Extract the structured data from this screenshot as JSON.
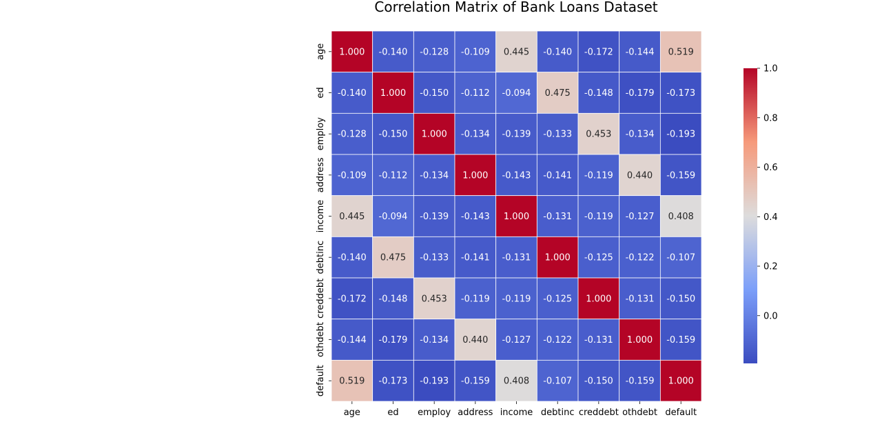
{
  "chart_data": {
    "type": "heatmap",
    "title": "Correlation Matrix of Bank Loans Dataset",
    "rows": [
      "age",
      "ed",
      "employ",
      "address",
      "income",
      "debtinc",
      "creddebt",
      "othdebt",
      "default"
    ],
    "columns": [
      "age",
      "ed",
      "employ",
      "address",
      "income",
      "debtinc",
      "creddebt",
      "othdebt",
      "default"
    ],
    "values": [
      [
        1.0,
        -0.14,
        -0.128,
        -0.109,
        0.445,
        -0.14,
        -0.172,
        -0.144,
        0.519
      ],
      [
        -0.14,
        1.0,
        -0.15,
        -0.112,
        -0.094,
        0.475,
        -0.148,
        -0.179,
        -0.173
      ],
      [
        -0.128,
        -0.15,
        1.0,
        -0.134,
        -0.139,
        -0.133,
        0.453,
        -0.134,
        -0.193
      ],
      [
        -0.109,
        -0.112,
        -0.134,
        1.0,
        -0.143,
        -0.141,
        -0.119,
        0.44,
        -0.159
      ],
      [
        0.445,
        -0.094,
        -0.139,
        -0.143,
        1.0,
        -0.131,
        -0.119,
        -0.127,
        0.408
      ],
      [
        -0.14,
        0.475,
        -0.133,
        -0.141,
        -0.131,
        1.0,
        -0.125,
        -0.122,
        -0.107
      ],
      [
        -0.172,
        -0.148,
        0.453,
        -0.119,
        -0.119,
        -0.125,
        1.0,
        -0.131,
        -0.15
      ],
      [
        -0.144,
        -0.179,
        -0.134,
        0.44,
        -0.127,
        -0.122,
        -0.131,
        1.0,
        -0.159
      ],
      [
        0.519,
        -0.173,
        -0.193,
        -0.159,
        0.408,
        -0.107,
        -0.15,
        -0.159,
        1.0
      ]
    ],
    "value_format": "3 decimals",
    "colormap": "coolwarm",
    "vmin": -0.193,
    "vmax": 1.0,
    "colorbar_ticks": [
      "0.0",
      "0.2",
      "0.4",
      "0.6",
      "0.8",
      "1.0"
    ],
    "cell_border_color": "#ffffff",
    "grid": false,
    "legend": "colorbar-right"
  }
}
